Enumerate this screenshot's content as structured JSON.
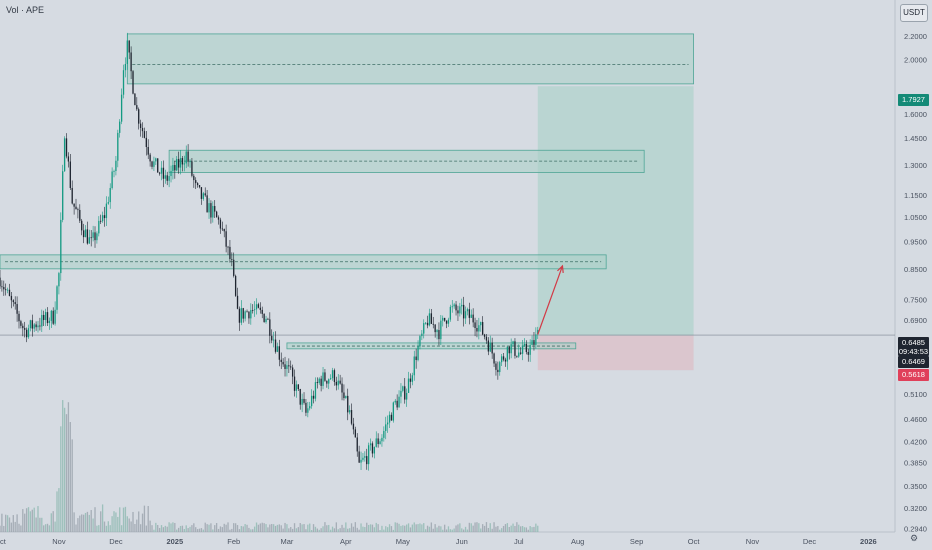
{
  "legend": "Vol · APE",
  "currency": "USDT",
  "price_axis": {
    "ticks": [
      "2.4000",
      "2.2000",
      "2.0000",
      "1.6000",
      "1.4500",
      "1.3000",
      "1.1500",
      "1.0500",
      "0.9500",
      "0.8500",
      "0.7500",
      "0.6900",
      "0.5100",
      "0.4600",
      "0.4200",
      "0.3850",
      "0.3500",
      "0.3200",
      "0.2940"
    ]
  },
  "time_axis": {
    "ticks": [
      "Oct",
      "Nov",
      "Dec",
      "2025",
      "Feb",
      "Mar",
      "Apr",
      "May",
      "Jun",
      "Jul",
      "Aug",
      "Sep",
      "Oct",
      "Nov",
      "Dec",
      "2026"
    ]
  },
  "price_labels": {
    "target": "1.7927",
    "current": "0.6485",
    "countdown": "09:43:53",
    "entry": "0.6469",
    "stop": "0.5618"
  },
  "colors": {
    "background": "#d6dbe2",
    "up": "#149a82",
    "down": "#1f2530",
    "zone_fill": "#a9cfc6",
    "zone_border": "#4fa596",
    "target_zone": "#b5d4cf",
    "stop_zone": "#dcc3cc",
    "arrow": "#d23a46"
  },
  "chart_data": {
    "type": "candlestick",
    "symbol": "APE",
    "quote": "USDT",
    "y_scale": "log",
    "ylim": [
      0.29,
      2.55
    ],
    "x_range": [
      "2024-10-01",
      "2026-01-15"
    ],
    "series_path": [
      [
        "2024-10-01",
        0.82
      ],
      [
        "2024-10-06",
        0.75
      ],
      [
        "2024-10-14",
        0.66
      ],
      [
        "2024-10-20",
        0.68
      ],
      [
        "2024-10-29",
        0.7
      ],
      [
        "2024-11-01",
        0.83
      ],
      [
        "2024-11-04",
        1.5
      ],
      [
        "2024-11-08",
        1.12
      ],
      [
        "2024-11-12",
        1.03
      ],
      [
        "2024-11-18",
        0.94
      ],
      [
        "2024-11-25",
        1.06
      ],
      [
        "2024-12-01",
        1.32
      ],
      [
        "2024-12-05",
        1.95
      ],
      [
        "2024-12-07",
        2.1
      ],
      [
        "2024-12-12",
        1.62
      ],
      [
        "2024-12-20",
        1.32
      ],
      [
        "2024-12-27",
        1.22
      ],
      [
        "2025-01-03",
        1.3
      ],
      [
        "2025-01-07",
        1.36
      ],
      [
        "2025-01-12",
        1.18
      ],
      [
        "2025-01-18",
        1.1
      ],
      [
        "2025-01-25",
        1.02
      ],
      [
        "2025-01-31",
        0.86
      ],
      [
        "2025-02-03",
        0.7
      ],
      [
        "2025-02-10",
        0.72
      ],
      [
        "2025-02-18",
        0.7
      ],
      [
        "2025-02-25",
        0.6
      ],
      [
        "2025-03-03",
        0.55
      ],
      [
        "2025-03-11",
        0.47
      ],
      [
        "2025-03-18",
        0.54
      ],
      [
        "2025-03-26",
        0.55
      ],
      [
        "2025-04-03",
        0.47
      ],
      [
        "2025-04-08",
        0.38
      ],
      [
        "2025-04-13",
        0.4
      ],
      [
        "2025-04-20",
        0.43
      ],
      [
        "2025-04-27",
        0.49
      ],
      [
        "2025-05-03",
        0.52
      ],
      [
        "2025-05-08",
        0.6
      ],
      [
        "2025-05-14",
        0.69
      ],
      [
        "2025-05-20",
        0.66
      ],
      [
        "2025-05-26",
        0.72
      ],
      [
        "2025-06-01",
        0.71
      ],
      [
        "2025-06-08",
        0.69
      ],
      [
        "2025-06-14",
        0.64
      ],
      [
        "2025-06-20",
        0.57
      ],
      [
        "2025-06-26",
        0.62
      ],
      [
        "2025-07-02",
        0.6
      ],
      [
        "2025-07-08",
        0.62
      ],
      [
        "2025-07-11",
        0.65
      ]
    ],
    "zones": [
      {
        "from": "2024-12-07",
        "to": "2025-10-01",
        "low": 1.81,
        "high": 2.22,
        "mid": 1.96
      },
      {
        "from": "2024-12-29",
        "to": "2025-09-05",
        "low": 1.26,
        "high": 1.38,
        "mid": 1.32
      },
      {
        "from": "2024-10-01",
        "to": "2025-08-16",
        "low": 0.85,
        "high": 0.9,
        "mid": 0.875
      },
      {
        "from": "2025-03-01",
        "to": "2025-07-31",
        "low": 0.613,
        "high": 0.628,
        "mid": 0.62
      }
    ],
    "long_position": {
      "from": "2025-07-11",
      "to": "2025-10-01",
      "entry": 0.6469,
      "target": 1.7927,
      "stop": 0.5618
    },
    "projection_arrow": {
      "from_date": "2025-07-11",
      "from_price": 0.65,
      "to_date": "2025-07-24",
      "to_price": 0.86
    },
    "volume": {
      "style": "histogram",
      "spike_date": "2024-11-04"
    }
  }
}
